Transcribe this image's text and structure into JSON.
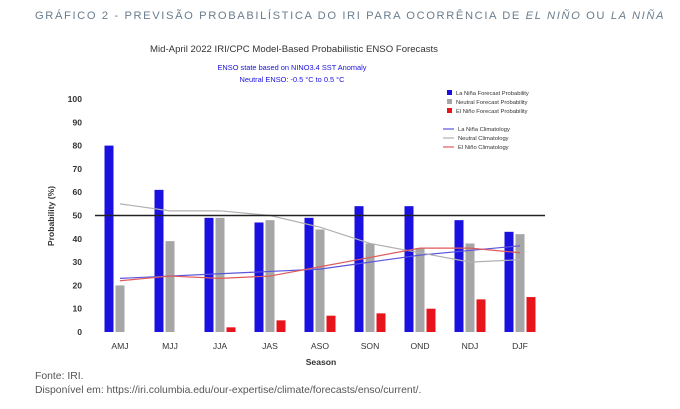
{
  "caption": {
    "prefix": "GRÁFICO 2 - PREVISÃO PROBABILÍSTICA DO IRI PARA OCORRÊNCIA DE ",
    "el_nino": "EL NIÑO",
    "or": " OU ",
    "la_nina": "LA NIÑA"
  },
  "footer": {
    "source": "Fonte: IRI.",
    "available": "Disponível em: https://iri.columbia.edu/our-expertise/climate/forecasts/enso/current/."
  },
  "colors": {
    "la_nina": "#1a10e0",
    "neutral": "#a6a6a6",
    "el_nino": "#e8141c",
    "la_nina_clim": "#5a55dd",
    "neutral_clim": "#b0b0b0",
    "el_nino_clim": "#e05a5a",
    "threshold": "#222222"
  },
  "chart_data": {
    "type": "bar",
    "title": "Mid-April 2022 IRI/CPC Model-Based Probabilistic ENSO Forecasts",
    "subtitle_1": "ENSO state based on NINO3.4 SST Anomaly",
    "subtitle_2": "Neutral ENSO: -0.5 °C to 0.5 °C",
    "xlabel": "Season",
    "ylabel": "Probability (%)",
    "ylim": [
      0,
      100
    ],
    "yticks": [
      0,
      10,
      20,
      30,
      40,
      50,
      60,
      70,
      80,
      90,
      100
    ],
    "categories": [
      "AMJ",
      "MJJ",
      "JJA",
      "JAS",
      "ASO",
      "SON",
      "OND",
      "NDJ",
      "DJF"
    ],
    "reference_line": 50,
    "grid": false,
    "legend_position": "top-right",
    "series": [
      {
        "name": "La Niña Forecast Probability",
        "values": [
          80,
          61,
          49,
          47,
          49,
          54,
          54,
          48,
          43
        ]
      },
      {
        "name": "Neutral Forecast Probability",
        "values": [
          20,
          39,
          49,
          48,
          44,
          38,
          36,
          38,
          42
        ]
      },
      {
        "name": "El Niño Forecast Probability",
        "values": [
          0,
          0,
          2,
          5,
          7,
          8,
          10,
          14,
          15
        ]
      }
    ],
    "climatology": [
      {
        "name": "La Niña Climatology",
        "values": [
          23,
          24,
          25,
          26,
          27,
          30,
          33,
          35,
          37
        ]
      },
      {
        "name": "Neutral Climatology",
        "values": [
          55,
          52,
          52,
          50,
          45,
          38,
          34,
          30,
          31
        ]
      },
      {
        "name": "El Niño Climatology",
        "values": [
          22,
          24,
          23,
          24,
          28,
          32,
          36,
          36,
          34
        ]
      }
    ]
  }
}
